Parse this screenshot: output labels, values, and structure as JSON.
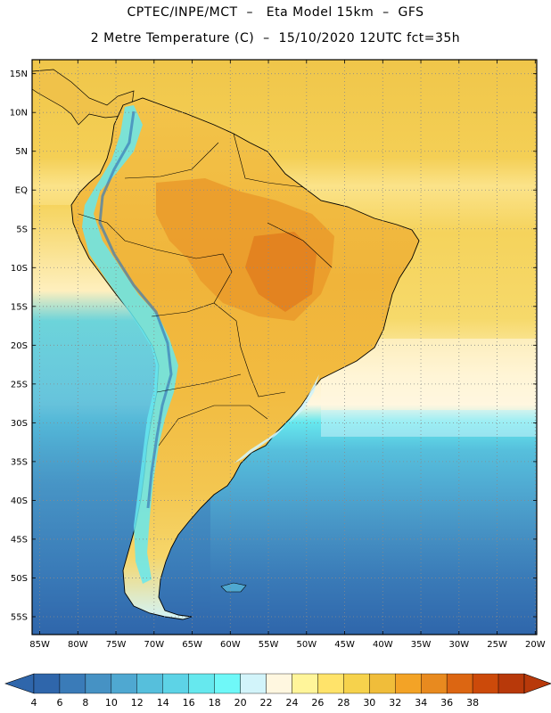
{
  "header": {
    "title_line1": "CPTEC/INPE/MCT  –   Eta Model 15km  –  GFS",
    "title_line2": "2 Metre Temperature (C)  –  15/10/2020 12UTC fct=35h"
  },
  "map": {
    "lat_labels": [
      "15N",
      "10N",
      "5N",
      "EQ",
      "5S",
      "10S",
      "15S",
      "20S",
      "25S",
      "30S",
      "35S",
      "40S",
      "45S",
      "50S",
      "55S"
    ],
    "lat_values": [
      15,
      10,
      5,
      0,
      -5,
      -10,
      -15,
      -20,
      -25,
      -30,
      -35,
      -40,
      -45,
      -50,
      -55
    ],
    "lon_labels": [
      "85W",
      "80W",
      "75W",
      "70W",
      "65W",
      "60W",
      "55W",
      "50W",
      "45W",
      "40W",
      "35W",
      "30W",
      "25W",
      "20W"
    ],
    "lon_values": [
      -85,
      -80,
      -75,
      -70,
      -65,
      -60,
      -55,
      -50,
      -45,
      -40,
      -35,
      -30,
      -25,
      -20
    ],
    "extent": {
      "lon_min": -86,
      "lon_max": -19.8,
      "lat_min": -57.3,
      "lat_max": 16.8
    },
    "grid": "dotted"
  },
  "colorbar": {
    "labels": [
      "4",
      "6",
      "8",
      "10",
      "12",
      "14",
      "16",
      "18",
      "20",
      "22",
      "24",
      "26",
      "28",
      "30",
      "32",
      "34",
      "36",
      "38"
    ],
    "colors": [
      "#2f66ab",
      "#3a7bb8",
      "#4692c4",
      "#4fa8d1",
      "#56bfdc",
      "#5dd3e6",
      "#66e8ee",
      "#6ff8f8",
      "#d2f4fa",
      "#fff7e0",
      "#fff59a",
      "#ffe36a",
      "#f6d24c",
      "#f0bd3a",
      "#f3a326",
      "#e88a1f",
      "#dc6612",
      "#cc4a0a",
      "#b8390a"
    ]
  }
}
